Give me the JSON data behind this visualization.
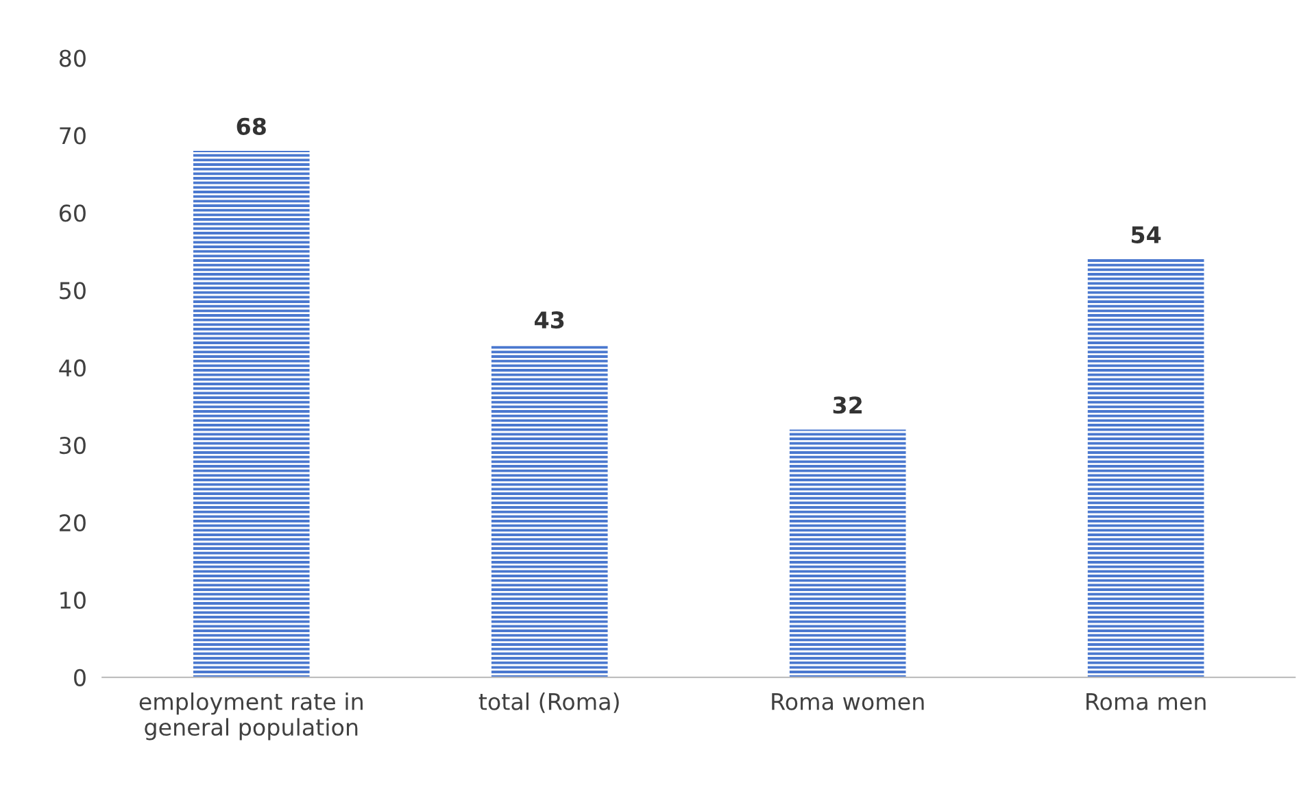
{
  "chart_data": {
    "type": "bar",
    "categories": [
      "employment rate in\ngeneral population",
      "total (Roma)",
      "Roma women",
      "Roma men"
    ],
    "values": [
      68,
      43,
      32,
      54
    ],
    "color": "#4a78cf",
    "ylim": [
      0,
      80
    ],
    "yticks": [
      0,
      10,
      20,
      30,
      40,
      50,
      60,
      70,
      80
    ],
    "data_labels": true,
    "grid": false,
    "legend": false
  }
}
